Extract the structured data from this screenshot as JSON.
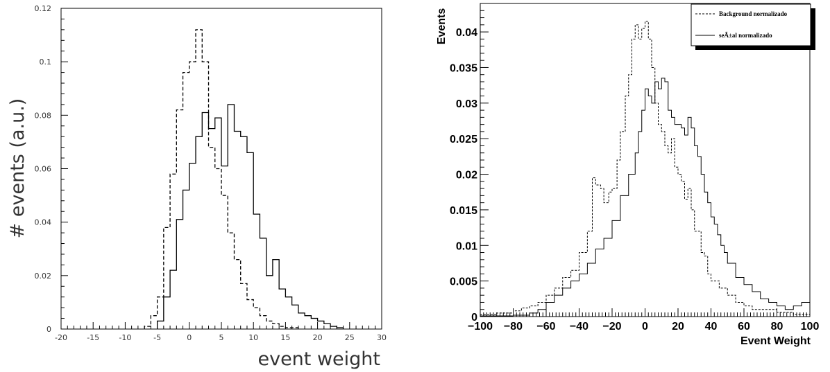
{
  "chart_data": [
    {
      "type": "histogram",
      "title": "",
      "xlabel": "event weight",
      "ylabel": "# events (a.u.)",
      "xlim": [
        -20,
        30
      ],
      "ylim": [
        0,
        0.12
      ],
      "xticks": [
        -20,
        -15,
        -10,
        -5,
        0,
        5,
        10,
        15,
        20,
        25,
        30
      ],
      "yticks": [
        0,
        0.02,
        0.04,
        0.06,
        0.08,
        0.1,
        0.12
      ],
      "ytick_labels": [
        "0",
        "0.02",
        "0.04",
        "0.06",
        "0.08",
        "0.1",
        "0.12"
      ],
      "grid": false,
      "series": [
        {
          "style": "dashed",
          "edges": [
            -7,
            -6,
            -5,
            -4,
            -3,
            -2,
            -1,
            0,
            1,
            2,
            3,
            4,
            5,
            6,
            7,
            8,
            9,
            10,
            11,
            12,
            13,
            14,
            15,
            16,
            17
          ],
          "values": [
            0.001,
            0.005,
            0.012,
            0.038,
            0.058,
            0.082,
            0.096,
            0.1,
            0.112,
            0.1,
            0.068,
            0.06,
            0.05,
            0.036,
            0.026,
            0.017,
            0.011,
            0.008,
            0.005,
            0.003,
            0.002,
            0.001,
            0.0005,
            0.0005
          ]
        },
        {
          "style": "solid",
          "edges": [
            -5,
            -4,
            -3,
            -2,
            -1,
            0,
            1,
            2,
            3,
            4,
            5,
            6,
            7,
            8,
            9,
            10,
            11,
            12,
            13,
            14,
            15,
            16,
            17,
            18,
            19,
            20,
            21,
            22,
            23,
            24
          ],
          "values": [
            0.003,
            0.012,
            0.022,
            0.041,
            0.052,
            0.062,
            0.072,
            0.081,
            0.075,
            0.079,
            0.061,
            0.084,
            0.074,
            0.072,
            0.066,
            0.043,
            0.034,
            0.02,
            0.026,
            0.015,
            0.012,
            0.009,
            0.006,
            0.005,
            0.004,
            0.003,
            0.002,
            0.001,
            0.0005
          ]
        }
      ]
    },
    {
      "type": "histogram",
      "title": "",
      "xlabel": "Event Weight",
      "ylabel": "Events",
      "xlim": [
        -100,
        100
      ],
      "ylim": [
        0,
        0.044
      ],
      "xticks": [
        -100,
        -80,
        -60,
        -40,
        -20,
        0,
        20,
        40,
        60,
        80,
        100
      ],
      "xtick_labels": [
        "−100",
        "−80",
        "−60",
        "−40",
        "−20",
        "0",
        "20",
        "40",
        "60",
        "80",
        "100"
      ],
      "yticks": [
        0,
        0.005,
        0.01,
        0.015,
        0.02,
        0.025,
        0.03,
        0.035,
        0.04
      ],
      "ytick_labels": [
        "0",
        "0.005",
        "0.01",
        "0.015",
        "0.02",
        "0.025",
        "0.03",
        "0.035",
        "0.04"
      ],
      "grid": false,
      "legend": {
        "placement": "top-right",
        "entries": [
          "Background normalizado",
          "seÃ±al normalizado"
        ]
      },
      "series": [
        {
          "name": "Background normalizado",
          "style": "dashed",
          "x": [
            -100,
            -90,
            -80,
            -75,
            -70,
            -65,
            -60,
            -55,
            -50,
            -45,
            -40,
            -35,
            -32,
            -30,
            -27,
            -25,
            -22,
            -20,
            -17,
            -15,
            -12,
            -10,
            -8,
            -6,
            -4,
            -2,
            0,
            2,
            4,
            6,
            8,
            10,
            12,
            14,
            16,
            18,
            20,
            22,
            24,
            26,
            28,
            30,
            32,
            34,
            36,
            38,
            40,
            45,
            50,
            55,
            60,
            65,
            70,
            80,
            90,
            100
          ],
          "values": [
            0.0003,
            0.0005,
            0.0008,
            0.0012,
            0.0015,
            0.002,
            0.003,
            0.004,
            0.0055,
            0.0065,
            0.009,
            0.012,
            0.0195,
            0.0185,
            0.018,
            0.016,
            0.0175,
            0.018,
            0.022,
            0.026,
            0.031,
            0.034,
            0.039,
            0.041,
            0.039,
            0.0405,
            0.0415,
            0.039,
            0.035,
            0.03,
            0.027,
            0.026,
            0.024,
            0.023,
            0.025,
            0.021,
            0.02,
            0.019,
            0.0165,
            0.018,
            0.015,
            0.012,
            0.012,
            0.009,
            0.0085,
            0.006,
            0.005,
            0.004,
            0.003,
            0.002,
            0.0015,
            0.001,
            0.001,
            0.0006,
            0.0003,
            0.0002
          ]
        },
        {
          "name": "seÃ±al normalizado",
          "style": "solid",
          "x": [
            -100,
            -80,
            -70,
            -65,
            -60,
            -55,
            -50,
            -45,
            -40,
            -35,
            -30,
            -25,
            -20,
            -15,
            -10,
            -6,
            -4,
            -2,
            0,
            2,
            4,
            6,
            8,
            10,
            12,
            14,
            16,
            18,
            20,
            22,
            24,
            26,
            28,
            30,
            32,
            34,
            36,
            38,
            40,
            42,
            44,
            46,
            48,
            50,
            55,
            60,
            65,
            70,
            75,
            80,
            85,
            90,
            95,
            100
          ],
          "values": [
            0.0001,
            0.0002,
            0.0005,
            0.001,
            0.002,
            0.003,
            0.004,
            0.005,
            0.006,
            0.0075,
            0.0095,
            0.011,
            0.0135,
            0.017,
            0.02,
            0.023,
            0.026,
            0.029,
            0.032,
            0.031,
            0.03,
            0.033,
            0.032,
            0.0335,
            0.033,
            0.029,
            0.028,
            0.027,
            0.027,
            0.0265,
            0.0255,
            0.028,
            0.0265,
            0.024,
            0.0225,
            0.02,
            0.0175,
            0.016,
            0.014,
            0.013,
            0.0115,
            0.01,
            0.009,
            0.0075,
            0.0055,
            0.0045,
            0.0035,
            0.0025,
            0.002,
            0.0015,
            0.001,
            0.0015,
            0.002,
            0.0015
          ]
        }
      ]
    }
  ]
}
